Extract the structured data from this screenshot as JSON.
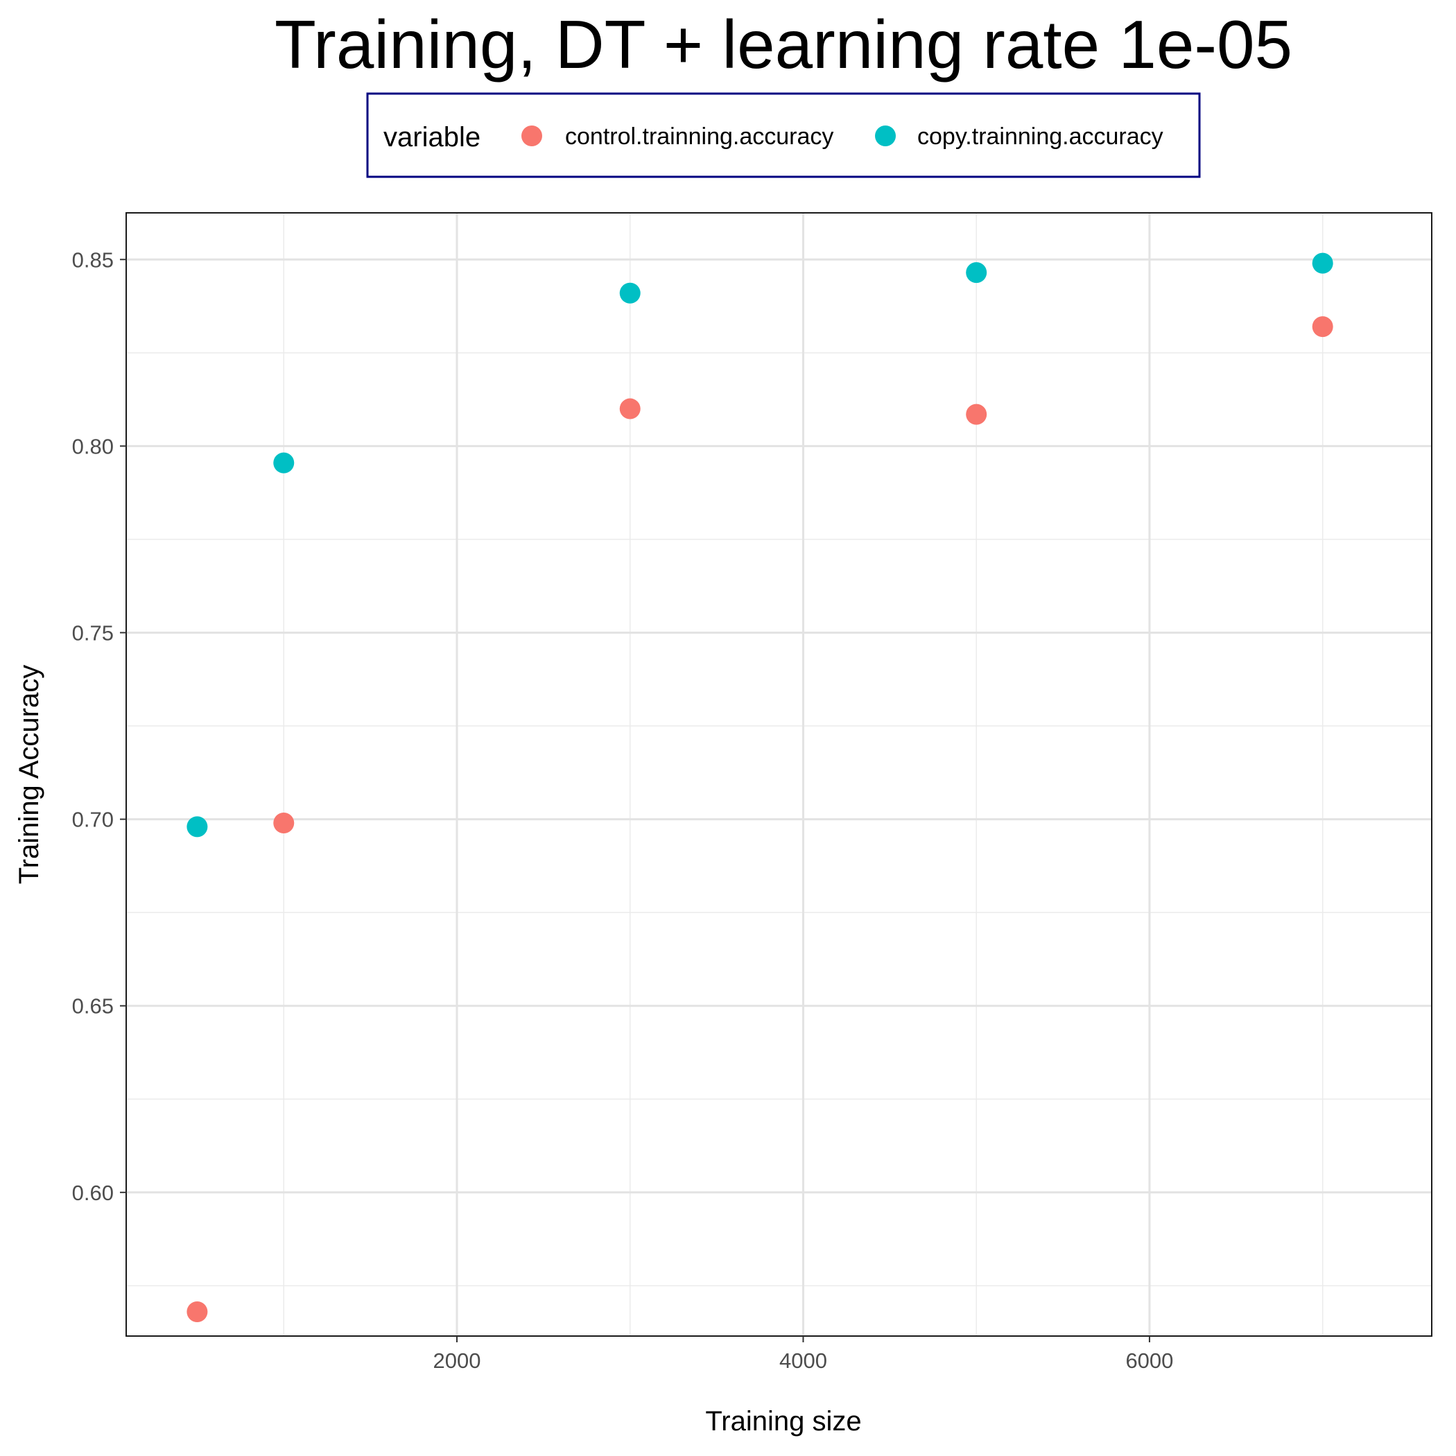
{
  "chart_data": {
    "type": "scatter",
    "title": "Training, DT + learning rate 1e-05",
    "xlabel": "Training size",
    "ylabel": "Training Accuracy",
    "xlim": [
      90,
      7630
    ],
    "ylim": [
      0.5615,
      0.8625
    ],
    "x_ticks": [
      2000,
      4000,
      6000
    ],
    "y_ticks": [
      0.6,
      0.65,
      0.7,
      0.75,
      0.8,
      0.85
    ],
    "x_tick_labels": [
      "2000",
      "4000",
      "6000"
    ],
    "y_tick_labels": [
      "0.60",
      "0.65",
      "0.70",
      "0.75",
      "0.80",
      "0.85"
    ],
    "grid": true,
    "legend": {
      "title": "variable",
      "position": "top"
    },
    "series": [
      {
        "name": "control.trainning.accuracy",
        "color": "#F8766D",
        "points": [
          {
            "x": 500,
            "y": 0.568
          },
          {
            "x": 1000,
            "y": 0.699
          },
          {
            "x": 3000,
            "y": 0.81
          },
          {
            "x": 5000,
            "y": 0.8085
          },
          {
            "x": 7000,
            "y": 0.832
          }
        ]
      },
      {
        "name": "copy.trainning.accuracy",
        "color": "#00BFC4",
        "points": [
          {
            "x": 500,
            "y": 0.698
          },
          {
            "x": 1000,
            "y": 0.7955
          },
          {
            "x": 3000,
            "y": 0.841
          },
          {
            "x": 5000,
            "y": 0.8465
          },
          {
            "x": 7000,
            "y": 0.849
          }
        ]
      }
    ]
  }
}
